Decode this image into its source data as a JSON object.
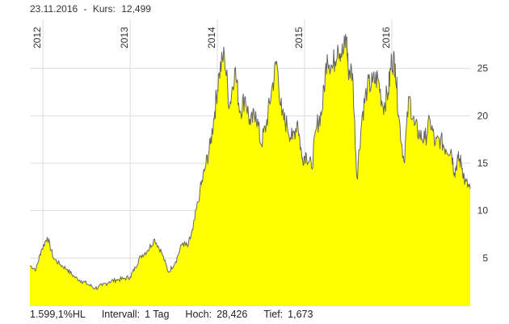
{
  "header": {
    "date": "23.11.2016",
    "separator": "-",
    "kurs_label": "Kurs:",
    "kurs_value": "12,499"
  },
  "footer": {
    "change": "1.599,1%HL",
    "interval_label": "Intervall:",
    "interval_value": "1 Tag",
    "high_label": "Hoch:",
    "high_value": "28,426",
    "low_label": "Tief:",
    "low_value": "1,673"
  },
  "colors": {
    "fill": "#ffff00",
    "line": "#666666",
    "grid": "#dddddd",
    "text": "#333333"
  },
  "chart_data": {
    "type": "area",
    "x_tick_labels": [
      "2012",
      "2013",
      "2014",
      "2015",
      "2016"
    ],
    "x_tick_positions": [
      2012.0,
      2013.0,
      2014.0,
      2015.0,
      2016.0
    ],
    "y_tick_labels": [
      "5",
      "10",
      "15",
      "20",
      "25"
    ],
    "y_ticks": [
      5,
      10,
      15,
      20,
      25
    ],
    "xlim": [
      2011.85,
      2016.9
    ],
    "ylim": [
      0,
      30
    ],
    "grid": true,
    "x": [
      2011.85,
      2011.92,
      2011.98,
      2012.05,
      2012.12,
      2012.2,
      2012.28,
      2012.36,
      2012.44,
      2012.52,
      2012.6,
      2012.68,
      2012.76,
      2012.84,
      2012.92,
      2013.0,
      2013.06,
      2013.12,
      2013.2,
      2013.28,
      2013.36,
      2013.44,
      2013.52,
      2013.6,
      2013.66,
      2013.72,
      2013.8,
      2013.86,
      2013.92,
      2013.97,
      2014.02,
      2014.08,
      2014.14,
      2014.2,
      2014.26,
      2014.32,
      2014.38,
      2014.44,
      2014.5,
      2014.56,
      2014.62,
      2014.68,
      2014.74,
      2014.8,
      2014.86,
      2014.92,
      2014.97,
      2015.02,
      2015.08,
      2015.14,
      2015.2,
      2015.26,
      2015.32,
      2015.38,
      2015.44,
      2015.48,
      2015.5,
      2015.55,
      2015.6,
      2015.66,
      2015.72,
      2015.78,
      2015.84,
      2015.9,
      2015.96,
      2016.0,
      2016.04,
      2016.08,
      2016.14,
      2016.2,
      2016.26,
      2016.32,
      2016.38,
      2016.44,
      2016.5,
      2016.56,
      2016.62,
      2016.68,
      2016.72,
      2016.76,
      2016.8,
      2016.84,
      2016.9
    ],
    "values": [
      4.2,
      3.8,
      5.8,
      7.2,
      5.0,
      4.3,
      3.8,
      3.0,
      2.6,
      2.2,
      1.8,
      2.1,
      2.5,
      2.7,
      2.8,
      3.0,
      4.0,
      5.2,
      5.8,
      7.0,
      5.6,
      3.5,
      4.6,
      6.6,
      6.2,
      8.0,
      12.0,
      14.5,
      17.0,
      20.5,
      24.5,
      26.5,
      21.0,
      25.0,
      20.5,
      22.0,
      19.0,
      20.5,
      17.0,
      19.0,
      22.5,
      25.8,
      20.0,
      19.0,
      17.5,
      19.5,
      15.5,
      16.0,
      14.5,
      19.0,
      20.5,
      26.5,
      25.0,
      27.5,
      26.5,
      28.3,
      25.0,
      24.5,
      13.5,
      20.0,
      23.0,
      23.5,
      24.0,
      21.0,
      22.5,
      26.0,
      25.5,
      20.0,
      15.2,
      22.0,
      19.0,
      18.0,
      17.5,
      19.5,
      17.0,
      17.5,
      16.5,
      16.5,
      14.0,
      15.5,
      15.0,
      13.0,
      12.3
    ]
  }
}
